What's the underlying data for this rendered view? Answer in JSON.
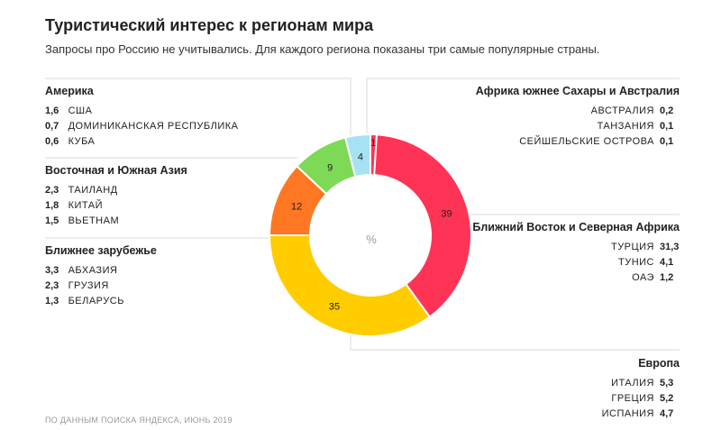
{
  "title": "Туристический интерес к регионам мира",
  "subtitle": "Запросы про Россию не учитывались. Для каждого региона показаны три самые популярные страны.",
  "footer": "ПО ДАННЫМ ПОИСКА ЯНДЕКСА, ИЮНЬ 2019",
  "chart_data": {
    "type": "pie",
    "center_label": "%",
    "slices": [
      {
        "label": "Африка южнее Сахары и Австралия",
        "value": 1,
        "color": "#ff3355"
      },
      {
        "label": "Ближний Восток и Северная Африка",
        "value": 39,
        "color": "#ff3355"
      },
      {
        "label": "Европа",
        "value": 35,
        "color": "#ffcc00"
      },
      {
        "label": "Ближнее зарубежье",
        "value": 12,
        "color": "#ff7722"
      },
      {
        "label": "Восточная и Южная Азия",
        "value": 9,
        "color": "#7ed957"
      },
      {
        "label": "Америка",
        "value": 4,
        "color": "#a6e2f3"
      }
    ]
  },
  "groups": {
    "america": {
      "name": "Америка",
      "items": [
        {
          "value": "1,6",
          "country": "США"
        },
        {
          "value": "0,7",
          "country": "ДОМИНИКАНСКАЯ РЕСПУБЛИКА"
        },
        {
          "value": "0,6",
          "country": "КУБА"
        }
      ]
    },
    "asia": {
      "name": "Восточная и Южная Азия",
      "items": [
        {
          "value": "2,3",
          "country": "ТАИЛАНД"
        },
        {
          "value": "1,8",
          "country": "КИТАЙ"
        },
        {
          "value": "1,5",
          "country": "ВЬЕТНАМ"
        }
      ]
    },
    "near": {
      "name": "Ближнее зарубежье",
      "items": [
        {
          "value": "3,3",
          "country": "АБХАЗИЯ"
        },
        {
          "value": "2,3",
          "country": "ГРУЗИЯ"
        },
        {
          "value": "1,3",
          "country": "БЕЛАРУСЬ"
        }
      ]
    },
    "africa": {
      "name": "Африка южнее Сахары и Австралия",
      "items": [
        {
          "value": "0,2",
          "country": "АВСТРАЛИЯ"
        },
        {
          "value": "0,1",
          "country": "ТАНЗАНИЯ"
        },
        {
          "value": "0,1",
          "country": "СЕЙШЕЛЬСКИЕ ОСТРОВА"
        }
      ]
    },
    "mideast": {
      "name": "Ближний Восток и Северная Африка",
      "items": [
        {
          "value": "31,3",
          "country": "ТУРЦИЯ"
        },
        {
          "value": "4,1",
          "country": "ТУНИС"
        },
        {
          "value": "1,2",
          "country": "ОАЭ"
        }
      ]
    },
    "europe": {
      "name": "Европа",
      "items": [
        {
          "value": "5,3",
          "country": "ИТАЛИЯ"
        },
        {
          "value": "5,2",
          "country": "ГРЕЦИЯ"
        },
        {
          "value": "4,7",
          "country": "ИСПАНИЯ"
        }
      ]
    }
  }
}
